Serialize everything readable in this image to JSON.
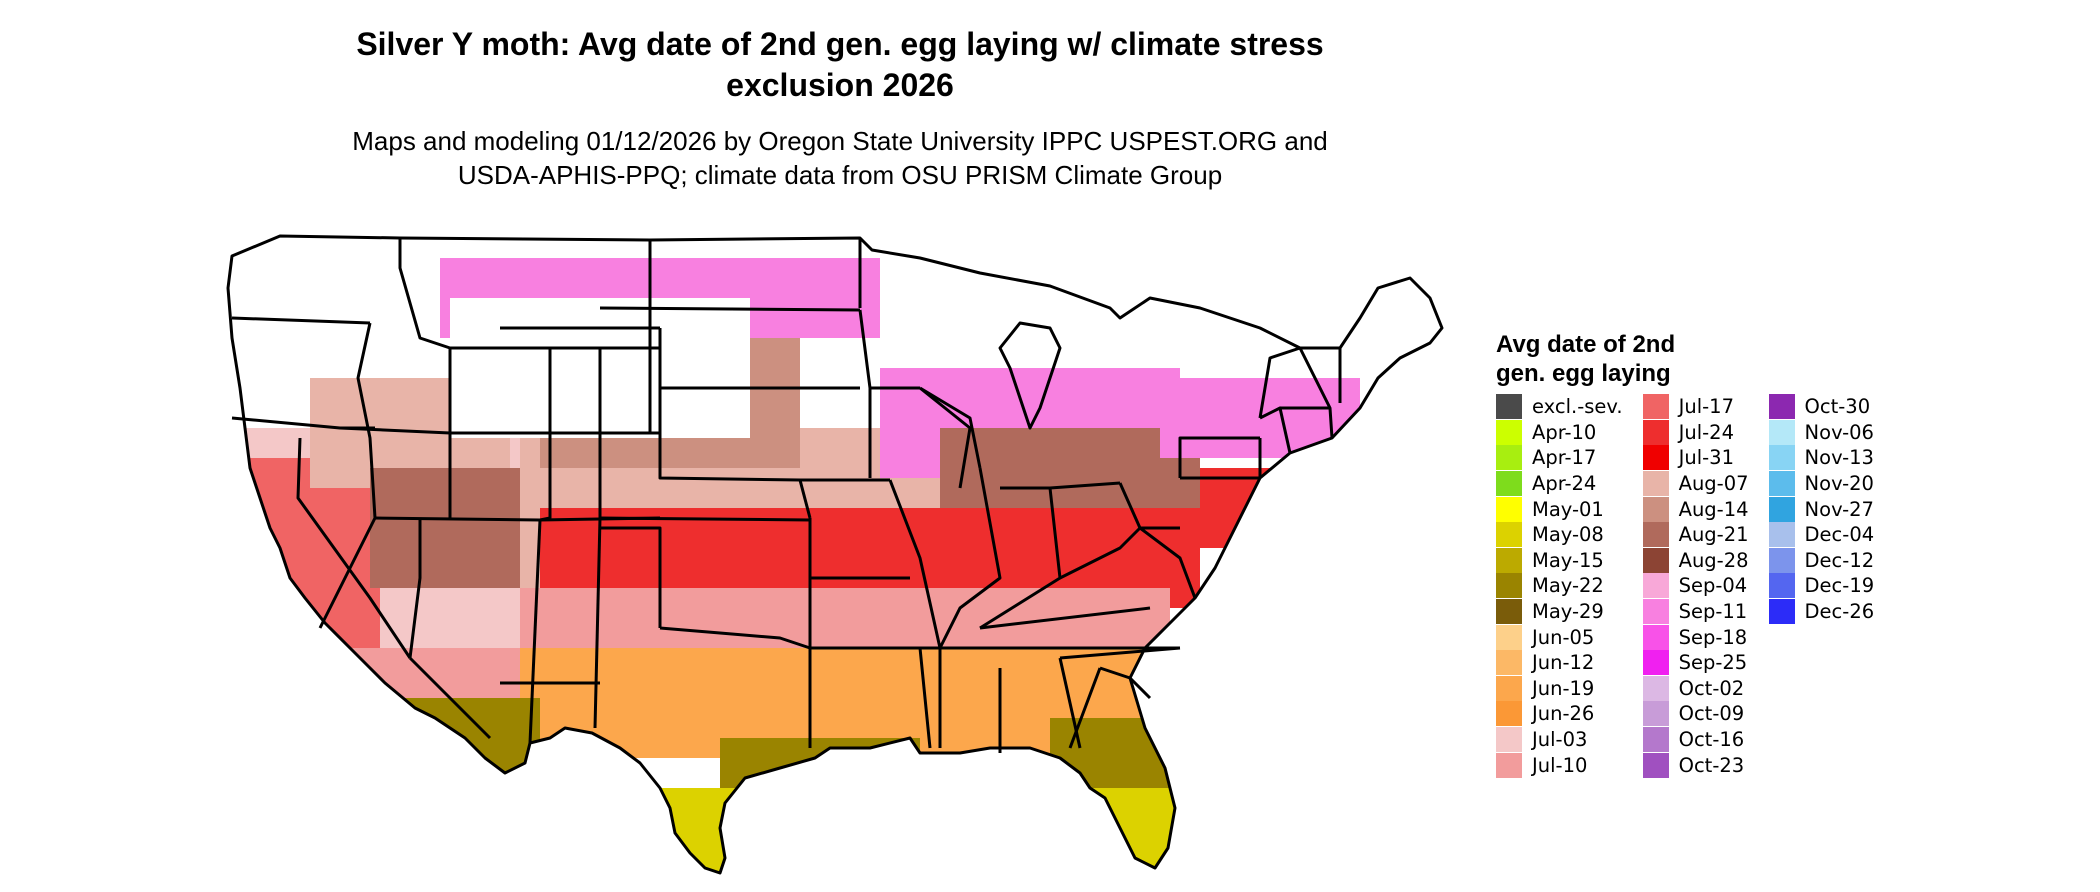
{
  "header": {
    "title_line1": "Silver Y moth: Avg date of 2nd gen. egg laying w/ climate stress",
    "title_line2": "exclusion 2026",
    "subtitle_line1": "Maps and modeling 01/12/2026 by Oregon State University IPPC USPEST.ORG and",
    "subtitle_line2": "USDA-APHIS-PPQ; climate data from OSU PRISM Climate Group"
  },
  "legend": {
    "title_line1": "Avg date of 2nd",
    "title_line2": "gen. egg laying",
    "items": [
      {
        "label": "excl.-sev.",
        "color": "#4a4a4a"
      },
      {
        "label": "Apr-10",
        "color": "#ccff00"
      },
      {
        "label": "Apr-17",
        "color": "#a8ee10"
      },
      {
        "label": "Apr-24",
        "color": "#7edc1c"
      },
      {
        "label": "May-01",
        "color": "#ffff00"
      },
      {
        "label": "May-08",
        "color": "#dcd200"
      },
      {
        "label": "May-15",
        "color": "#bcaa00"
      },
      {
        "label": "May-22",
        "color": "#9a8400"
      },
      {
        "label": "May-29",
        "color": "#7a5c0a"
      },
      {
        "label": "Jun-05",
        "color": "#fdd08a"
      },
      {
        "label": "Jun-12",
        "color": "#fcb866"
      },
      {
        "label": "Jun-19",
        "color": "#fca74c"
      },
      {
        "label": "Jun-26",
        "color": "#fb9836"
      },
      {
        "label": "Jul-03",
        "color": "#f4c8c8"
      },
      {
        "label": "Jul-10",
        "color": "#f29c9c"
      },
      {
        "label": "Jul-17",
        "color": "#f06464"
      },
      {
        "label": "Jul-24",
        "color": "#ee2e2e"
      },
      {
        "label": "Jul-31",
        "color": "#f00000"
      },
      {
        "label": "Aug-07",
        "color": "#e8b4a8"
      },
      {
        "label": "Aug-14",
        "color": "#cc9080"
      },
      {
        "label": "Aug-21",
        "color": "#b06a5c"
      },
      {
        "label": "Aug-28",
        "color": "#8c4434"
      },
      {
        "label": "Sep-04",
        "color": "#f8a8d8"
      },
      {
        "label": "Sep-11",
        "color": "#f880e0"
      },
      {
        "label": "Sep-18",
        "color": "#f852e8"
      },
      {
        "label": "Sep-25",
        "color": "#f020f0"
      },
      {
        "label": "Oct-02",
        "color": "#dcb8e4"
      },
      {
        "label": "Oct-09",
        "color": "#c89cd8"
      },
      {
        "label": "Oct-16",
        "color": "#b478cc"
      },
      {
        "label": "Oct-23",
        "color": "#a050c0"
      },
      {
        "label": "Oct-30",
        "color": "#8c28b0"
      },
      {
        "label": "Nov-06",
        "color": "#b4e8f8"
      },
      {
        "label": "Nov-13",
        "color": "#88d4f4"
      },
      {
        "label": "Nov-20",
        "color": "#5cbcec"
      },
      {
        "label": "Nov-27",
        "color": "#30a4e0"
      },
      {
        "label": "Dec-04",
        "color": "#a8c0ec"
      },
      {
        "label": "Dec-12",
        "color": "#7c94ec"
      },
      {
        "label": "Dec-19",
        "color": "#5466f0"
      },
      {
        "label": "Dec-26",
        "color": "#2c2cf8"
      }
    ]
  }
}
